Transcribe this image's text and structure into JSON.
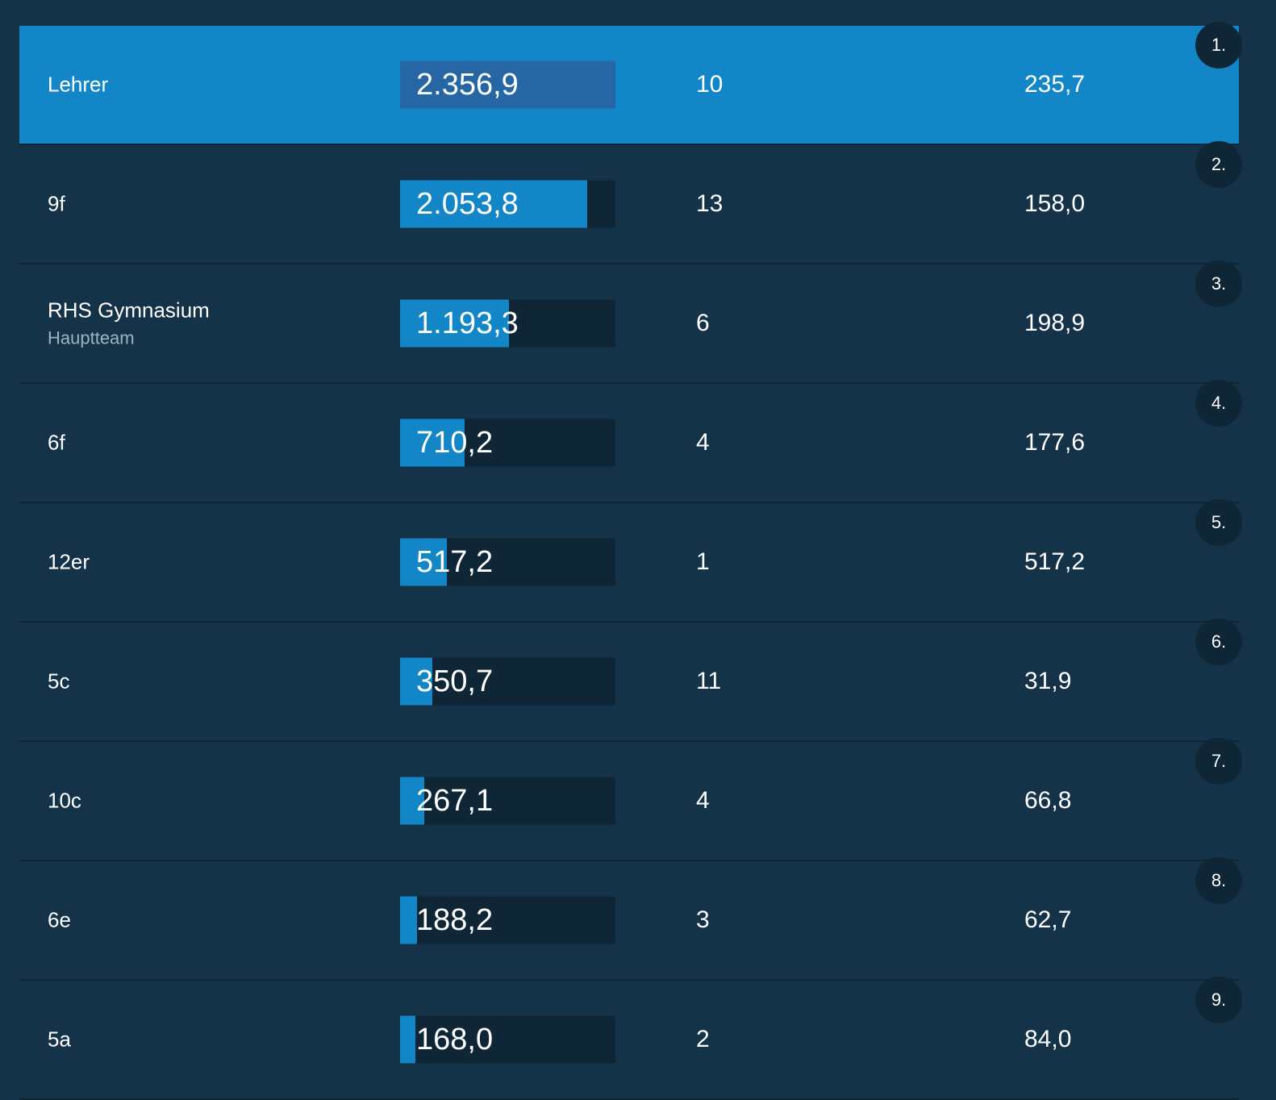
{
  "max_total": 2356.9,
  "rows": [
    {
      "rank": "1.",
      "name": "Lehrer",
      "sub": "",
      "total_label": "2.356,9",
      "total": 2356.9,
      "members": "10",
      "avg": "235,7",
      "highlight": true
    },
    {
      "rank": "2.",
      "name": "9f",
      "sub": "",
      "total_label": "2.053,8",
      "total": 2053.8,
      "members": "13",
      "avg": "158,0",
      "highlight": false
    },
    {
      "rank": "3.",
      "name": "RHS Gymnasium",
      "sub": "Hauptteam",
      "total_label": "1.193,3",
      "total": 1193.3,
      "members": "6",
      "avg": "198,9",
      "highlight": false
    },
    {
      "rank": "4.",
      "name": "6f",
      "sub": "",
      "total_label": "710,2",
      "total": 710.2,
      "members": "4",
      "avg": "177,6",
      "highlight": false
    },
    {
      "rank": "5.",
      "name": "12er",
      "sub": "",
      "total_label": "517,2",
      "total": 517.2,
      "members": "1",
      "avg": "517,2",
      "highlight": false
    },
    {
      "rank": "6.",
      "name": "5c",
      "sub": "",
      "total_label": "350,7",
      "total": 350.7,
      "members": "11",
      "avg": "31,9",
      "highlight": false
    },
    {
      "rank": "7.",
      "name": "10c",
      "sub": "",
      "total_label": "267,1",
      "total": 267.1,
      "members": "4",
      "avg": "66,8",
      "highlight": false
    },
    {
      "rank": "8.",
      "name": "6e",
      "sub": "",
      "total_label": "188,2",
      "total": 188.2,
      "members": "3",
      "avg": "62,7",
      "highlight": false
    },
    {
      "rank": "9.",
      "name": "5a",
      "sub": "",
      "total_label": "168,0",
      "total": 168.0,
      "members": "2",
      "avg": "84,0",
      "highlight": false
    }
  ]
}
